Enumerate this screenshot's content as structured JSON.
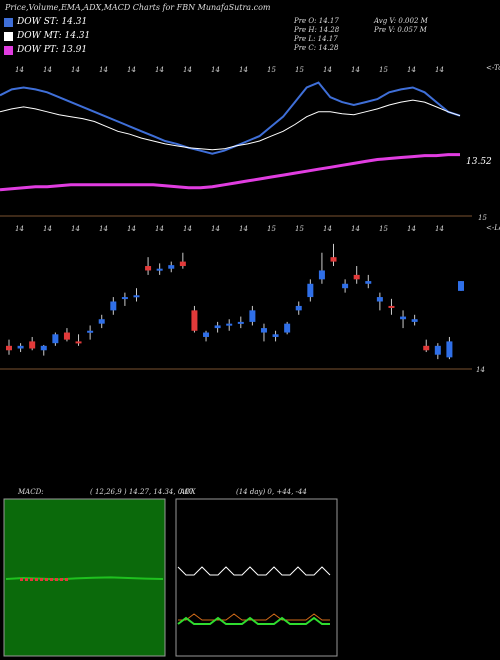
{
  "header": {
    "title": "Price,Volume,EMA,ADX,MACD Charts for FBN  MunafaSutra.com"
  },
  "legend": [
    {
      "label": "DOW ST: 14.31",
      "color": "#3f6fd8"
    },
    {
      "label": "DOW MT: 14.31",
      "color": "#ffffff"
    },
    {
      "label": "DOW PT: 13.91",
      "color": "#e13de1"
    }
  ],
  "stats": {
    "open": "Pre   O: 14.17",
    "high": "Pre   H: 14.28",
    "low": "Pre   L: 14.17",
    "close": "Pre   C: 14.28",
    "avg_vol": "Avg V: 0.002  M",
    "pre_vol": "Pre   V: 0.057 M"
  },
  "panels": {
    "ema": {
      "top_label": "<-Topo",
      "bottom_label": "<-Lowo",
      "price_label": "13.52",
      "axis_label": "15"
    },
    "candle": {
      "price_label": "14",
      "date_ticks": [
        "14",
        "14",
        "14",
        "14",
        "14",
        "14",
        "14",
        "14",
        "14",
        "15",
        "15",
        "14",
        "14",
        "15",
        "14",
        "14"
      ]
    },
    "macd": {
      "label": "MACD:",
      "params": "( 12,26,9 ) 14.27,  14.34,  0.07"
    },
    "adx": {
      "label": "ADX",
      "params": "(14  day) 0,  +44,  -44"
    }
  },
  "chart_data": [
    {
      "type": "line",
      "title": "EMA / DOW",
      "series": [
        {
          "name": "DOW ST",
          "color": "#3f6fd8",
          "values": [
            14.52,
            14.58,
            14.6,
            14.58,
            14.55,
            14.5,
            14.45,
            14.4,
            14.35,
            14.3,
            14.25,
            14.2,
            14.15,
            14.1,
            14.05,
            14.02,
            13.98,
            13.95,
            13.92,
            13.95,
            14.0,
            14.05,
            14.1,
            14.2,
            14.3,
            14.45,
            14.6,
            14.65,
            14.5,
            14.45,
            14.42,
            14.45,
            14.48,
            14.55,
            14.58,
            14.6,
            14.55,
            14.45,
            14.35,
            14.31
          ]
        },
        {
          "name": "DOW MT",
          "color": "#ffffff",
          "values": [
            14.35,
            14.38,
            14.4,
            14.38,
            14.35,
            14.32,
            14.3,
            14.28,
            14.25,
            14.2,
            14.15,
            14.12,
            14.08,
            14.05,
            14.02,
            14.0,
            13.98,
            13.97,
            13.96,
            13.97,
            14.0,
            14.02,
            14.05,
            14.1,
            14.15,
            14.22,
            14.3,
            14.35,
            14.35,
            14.33,
            14.32,
            14.35,
            14.38,
            14.42,
            14.45,
            14.47,
            14.45,
            14.4,
            14.35,
            14.31
          ]
        },
        {
          "name": "DOW PT",
          "color": "#e13de1",
          "values": [
            13.55,
            13.56,
            13.57,
            13.58,
            13.58,
            13.59,
            13.6,
            13.6,
            13.6,
            13.6,
            13.6,
            13.6,
            13.6,
            13.6,
            13.59,
            13.58,
            13.57,
            13.57,
            13.58,
            13.6,
            13.62,
            13.64,
            13.66,
            13.68,
            13.7,
            13.72,
            13.74,
            13.76,
            13.78,
            13.8,
            13.82,
            13.84,
            13.86,
            13.87,
            13.88,
            13.89,
            13.9,
            13.9,
            13.91,
            13.91
          ]
        }
      ]
    },
    {
      "type": "candlestick",
      "title": "Price",
      "ohlc": [
        [
          13.55,
          13.62,
          13.45,
          13.5
        ],
        [
          13.52,
          13.58,
          13.48,
          13.55
        ],
        [
          13.6,
          13.65,
          13.5,
          13.52
        ],
        [
          13.5,
          13.56,
          13.44,
          13.55
        ],
        [
          13.58,
          13.7,
          13.55,
          13.68
        ],
        [
          13.7,
          13.75,
          13.6,
          13.62
        ],
        [
          13.6,
          13.68,
          13.55,
          13.58
        ],
        [
          13.7,
          13.78,
          13.62,
          13.72
        ],
        [
          13.8,
          13.9,
          13.75,
          13.85
        ],
        [
          13.95,
          14.1,
          13.9,
          14.05
        ],
        [
          14.08,
          14.15,
          14.0,
          14.1
        ],
        [
          14.1,
          14.2,
          14.05,
          14.12
        ],
        [
          14.45,
          14.55,
          14.35,
          14.4
        ],
        [
          14.4,
          14.48,
          14.35,
          14.42
        ],
        [
          14.42,
          14.5,
          14.38,
          14.46
        ],
        [
          14.5,
          14.6,
          14.42,
          14.45
        ],
        [
          13.95,
          14.0,
          13.7,
          13.72
        ],
        [
          13.65,
          13.72,
          13.6,
          13.7
        ],
        [
          13.75,
          13.82,
          13.7,
          13.78
        ],
        [
          13.78,
          13.85,
          13.72,
          13.8
        ],
        [
          13.8,
          13.88,
          13.75,
          13.82
        ],
        [
          13.82,
          14.0,
          13.78,
          13.95
        ],
        [
          13.7,
          13.8,
          13.6,
          13.75
        ],
        [
          13.65,
          13.72,
          13.6,
          13.68
        ],
        [
          13.7,
          13.82,
          13.68,
          13.8
        ],
        [
          13.95,
          14.05,
          13.9,
          14.0
        ],
        [
          14.1,
          14.3,
          14.05,
          14.25
        ],
        [
          14.3,
          14.6,
          14.25,
          14.4
        ],
        [
          14.55,
          14.7,
          14.45,
          14.5
        ],
        [
          14.2,
          14.3,
          14.15,
          14.25
        ],
        [
          14.35,
          14.45,
          14.25,
          14.3
        ],
        [
          14.25,
          14.35,
          14.2,
          14.28
        ],
        [
          14.05,
          14.15,
          13.95,
          14.1
        ],
        [
          14.0,
          14.08,
          13.9,
          13.98
        ],
        [
          13.85,
          13.95,
          13.75,
          13.88
        ],
        [
          13.82,
          13.9,
          13.78,
          13.85
        ],
        [
          13.55,
          13.62,
          13.48,
          13.5
        ],
        [
          13.45,
          13.58,
          13.4,
          13.55
        ],
        [
          13.42,
          13.65,
          13.4,
          13.6
        ],
        [
          14.17,
          14.28,
          14.17,
          14.28
        ]
      ]
    },
    {
      "type": "line",
      "title": "MACD",
      "series": [
        {
          "name": "MACD",
          "values": [
            0,
            0.05,
            0.02,
            -0.02,
            0.03,
            0.06,
            0.08,
            0.05,
            0.02,
            0.0
          ]
        }
      ]
    },
    {
      "type": "line",
      "title": "ADX",
      "series": [
        {
          "name": "ADX",
          "values": [
            0,
            44,
            44,
            44,
            44,
            44,
            44
          ]
        }
      ]
    }
  ]
}
